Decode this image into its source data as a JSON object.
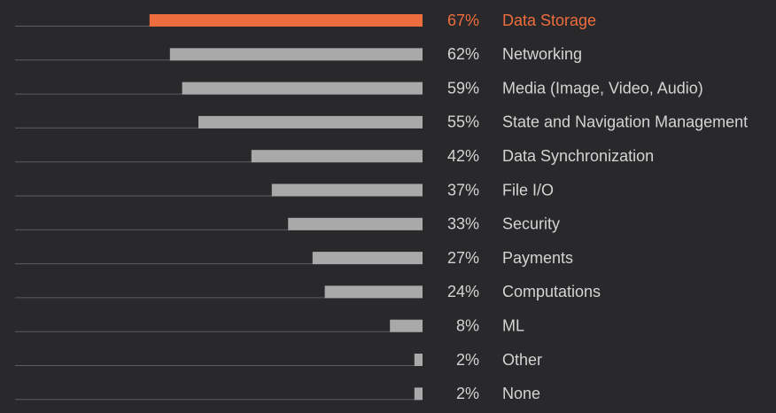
{
  "chart_data": {
    "type": "bar",
    "orientation": "horizontal",
    "value_suffix": "%",
    "xlim": [
      0,
      100
    ],
    "categories": [
      "Data Storage",
      "Networking",
      "Media (Image, Video, Audio)",
      "State and Navigation Management",
      "Data Synchronization",
      "File I/O",
      "Security",
      "Payments",
      "Computations",
      "ML",
      "Other",
      "None"
    ],
    "values": [
      67,
      62,
      59,
      55,
      42,
      37,
      33,
      27,
      24,
      8,
      2,
      2
    ],
    "value_labels": [
      "67%",
      "62%",
      "59%",
      "55%",
      "42%",
      "37%",
      "33%",
      "27%",
      "24%",
      "8%",
      "2%",
      "2%"
    ],
    "highlight_index": 0,
    "colors": {
      "background": "#29292b",
      "bar": "#a9a9a9",
      "bar_highlight": "#ee6d3e",
      "baseline": "#5e5e60",
      "label": "#d4d4d4",
      "label_highlight": "#ee6d3e"
    }
  }
}
